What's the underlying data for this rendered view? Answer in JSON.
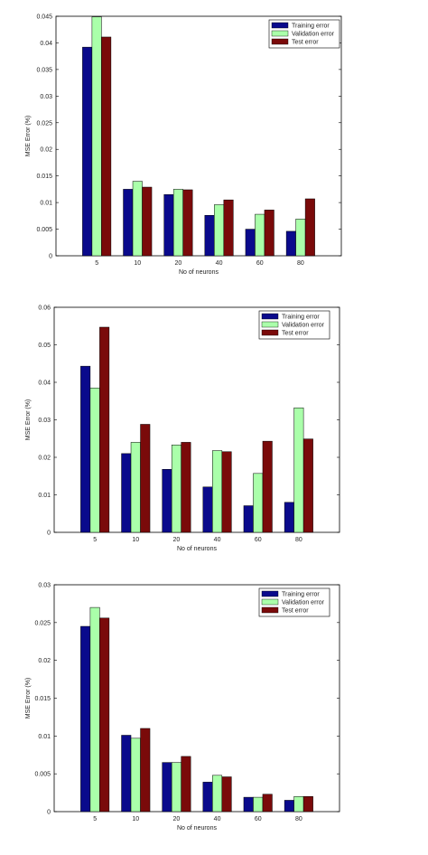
{
  "colors": {
    "training": "#0a0a8c",
    "validation": "#aaffaa",
    "test": "#7a0a0a"
  },
  "chart_data": [
    {
      "type": "bar",
      "xlabel": "No of neurons",
      "ylabel": "MSE Error (%)",
      "categories": [
        "5",
        "10",
        "20",
        "40",
        "60",
        "80"
      ],
      "ylim": [
        0,
        0.045
      ],
      "yticks": [
        "0",
        "0.005",
        "0.01",
        "0.015",
        "0.02",
        "0.025",
        "0.03",
        "0.035",
        "0.04",
        "0.045"
      ],
      "legend_position": "top-right",
      "series": [
        {
          "name": "Training error",
          "values": [
            0.0392,
            0.0125,
            0.0115,
            0.0076,
            0.005,
            0.0046
          ]
        },
        {
          "name": "Validation error",
          "values": [
            0.0449,
            0.014,
            0.0125,
            0.0096,
            0.0078,
            0.0069
          ]
        },
        {
          "name": "Test error",
          "values": [
            0.0411,
            0.0129,
            0.0124,
            0.0105,
            0.0086,
            0.0107
          ]
        }
      ]
    },
    {
      "type": "bar",
      "xlabel": "No of neurons",
      "ylabel": "MSE Error (%)",
      "categories": [
        "5",
        "10",
        "20",
        "40",
        "60",
        "80"
      ],
      "ylim": [
        0,
        0.06
      ],
      "yticks": [
        "0",
        "0.01",
        "0.02",
        "0.03",
        "0.04",
        "0.05",
        "0.06"
      ],
      "legend_position": "top-right",
      "series": [
        {
          "name": "Training error",
          "values": [
            0.0443,
            0.021,
            0.0168,
            0.0121,
            0.0071,
            0.008
          ]
        },
        {
          "name": "Validation error",
          "values": [
            0.0385,
            0.024,
            0.0233,
            0.0218,
            0.0157,
            0.0332
          ]
        },
        {
          "name": "Test error",
          "values": [
            0.0547,
            0.0288,
            0.024,
            0.0215,
            0.0243,
            0.0249
          ]
        }
      ]
    },
    {
      "type": "bar",
      "xlabel": "No of neurons",
      "ylabel": "MSE Error (%)",
      "categories": [
        "5",
        "10",
        "20",
        "40",
        "60",
        "80"
      ],
      "ylim": [
        0,
        0.03
      ],
      "yticks": [
        "0",
        "0.005",
        "0.01",
        "0.015",
        "0.02",
        "0.025",
        "0.03"
      ],
      "legend_position": "top-right",
      "series": [
        {
          "name": "Training error",
          "values": [
            0.0245,
            0.0101,
            0.0065,
            0.0039,
            0.0019,
            0.0015
          ]
        },
        {
          "name": "Validation error",
          "values": [
            0.027,
            0.0097,
            0.0065,
            0.0048,
            0.0019,
            0.002
          ]
        },
        {
          "name": "Test error",
          "values": [
            0.0256,
            0.011,
            0.0073,
            0.0046,
            0.0023,
            0.002
          ]
        }
      ]
    }
  ]
}
